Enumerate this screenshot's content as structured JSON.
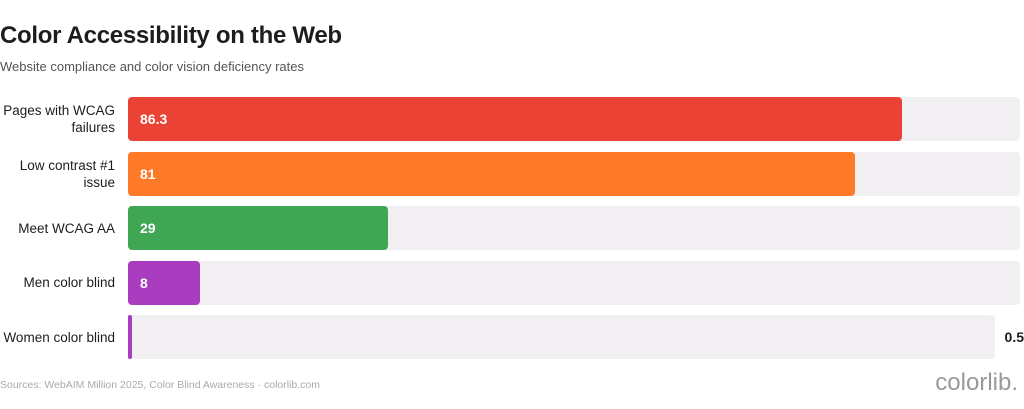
{
  "chart_data": {
    "type": "bar",
    "orientation": "horizontal",
    "title": "Color Accessibility on the Web",
    "subtitle": "Website compliance and color vision deficiency rates",
    "categories": [
      "Pages with WCAG failures",
      "Low contrast #1 issue",
      "Meet WCAG AA",
      "Men color blind",
      "Women color blind"
    ],
    "values": [
      86.3,
      81,
      29,
      8,
      0.5
    ],
    "colors": [
      "#ea4335",
      "#ff7a28",
      "#3fa653",
      "#a93cbf",
      "#a93cbf"
    ],
    "track_color": "#f1eff2",
    "xlim": [
      0,
      100
    ],
    "source": "Sources: WebAIM Million 2025, Color Blind Awareness · colorlib.com",
    "logo": "colorlib."
  }
}
